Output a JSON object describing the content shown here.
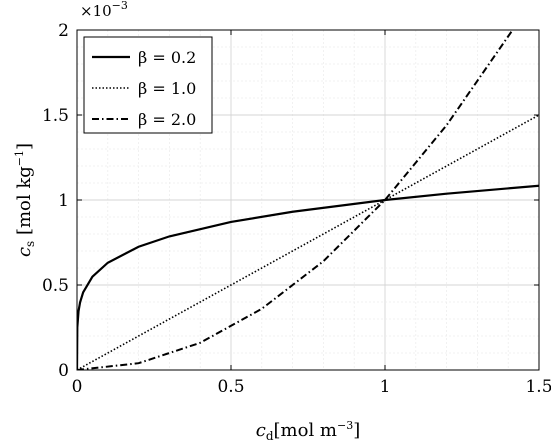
{
  "chart_data": {
    "type": "line",
    "xlabel": "c_d[mol m^-3]",
    "ylabel": "c_s [mol kg^-1]",
    "xlim": [
      0,
      1.5
    ],
    "ylim": [
      0,
      0.002
    ],
    "y_multiplier": "×10^-3",
    "x_ticks": [
      "0",
      "0.5",
      "1",
      "1.5"
    ],
    "y_ticks": [
      "0",
      "0.5",
      "1",
      "1.5",
      "2"
    ],
    "grid": true,
    "legend_position": "top-left",
    "series": [
      {
        "name": "β = 0.2",
        "style": "solid",
        "x": [
          0,
          0.001,
          0.005,
          0.01,
          0.02,
          0.05,
          0.1,
          0.2,
          0.3,
          0.5,
          0.7,
          1.0,
          1.2,
          1.5
        ],
        "y": [
          0,
          0.000251,
          0.000347,
          0.000398,
          0.000457,
          0.000549,
          0.000631,
          0.000725,
          0.000786,
          0.000871,
          0.000931,
          0.001,
          0.001037,
          0.001084
        ]
      },
      {
        "name": "β = 1.0",
        "style": "dotted",
        "x": [
          0,
          0.5,
          1.0,
          1.5
        ],
        "y": [
          0,
          0.0005,
          0.001,
          0.0015
        ]
      },
      {
        "name": "β = 2.0",
        "style": "dashdot",
        "x": [
          0,
          0.2,
          0.4,
          0.6,
          0.8,
          1.0,
          1.2,
          1.4142
        ],
        "y": [
          0,
          4e-05,
          0.00016,
          0.00036,
          0.00064,
          0.001,
          0.00144,
          0.002
        ]
      }
    ]
  },
  "legend": {
    "entries": [
      "β = 0.2",
      "β = 1.0",
      "β = 2.0"
    ]
  }
}
